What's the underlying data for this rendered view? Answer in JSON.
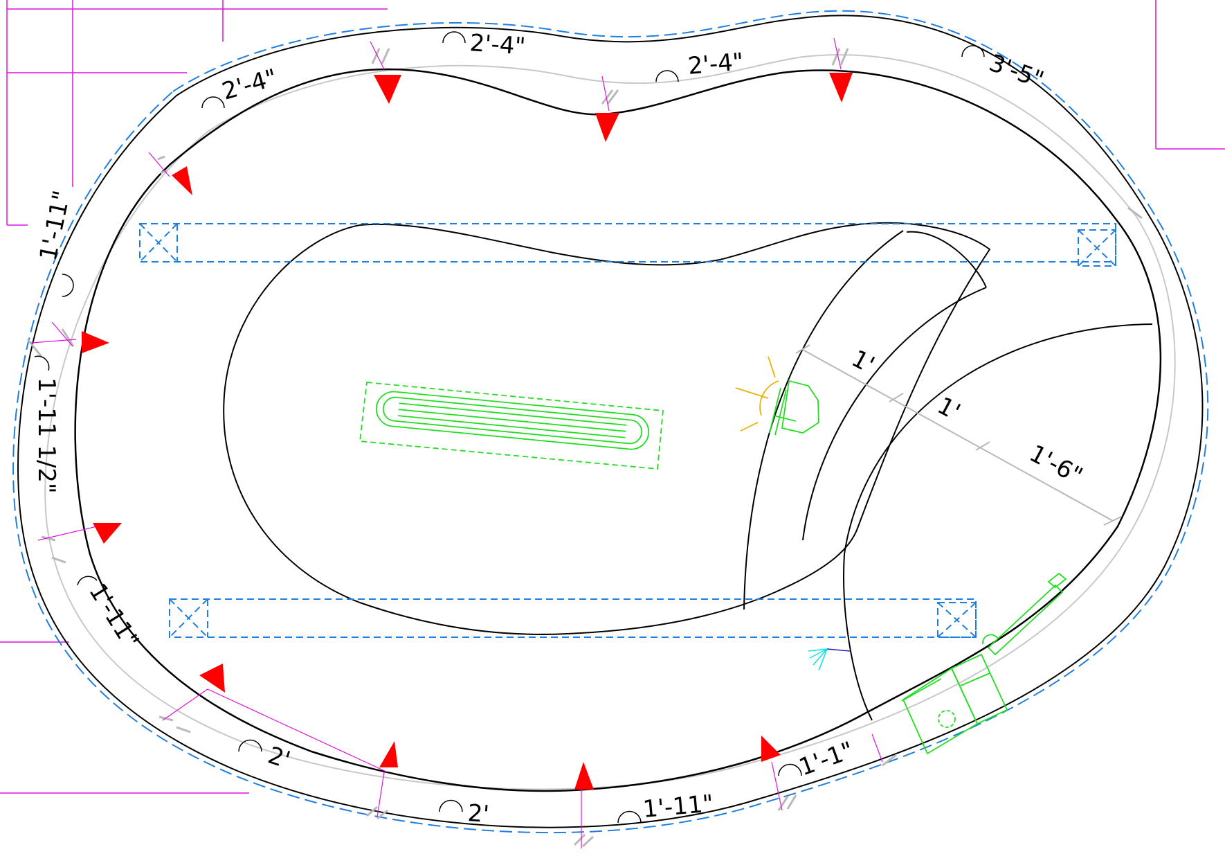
{
  "colors": {
    "background": "#ffffff",
    "outline": "#000000",
    "offset_line": "#1e7fe0",
    "grid_line": "#e010e0",
    "dimension_line": "#b8b8b8",
    "direction_marker": "#ff0000",
    "equipment": "#22dd22",
    "light_rays": "#f0b000",
    "spray": "#00e5e5"
  },
  "icons": {
    "arc_segment": "arc-symbol-icon",
    "marker": "red-triangle-icon",
    "drain": "main-drain-icon",
    "light": "pool-light-icon",
    "equipment": "equipment-pad-icon",
    "nozzle": "spray-nozzle-icon"
  },
  "arc_labels": [
    "2'-4\"",
    "2'-4\"",
    "2'-4\"",
    "3'-5\"",
    "1'-11\"",
    "1'-11 1/2\"",
    "1'-11\"",
    "2'",
    "2'",
    "1'-11\"",
    "1'-1\""
  ],
  "step_labels": [
    "1'",
    "1'",
    "1'-6\""
  ]
}
